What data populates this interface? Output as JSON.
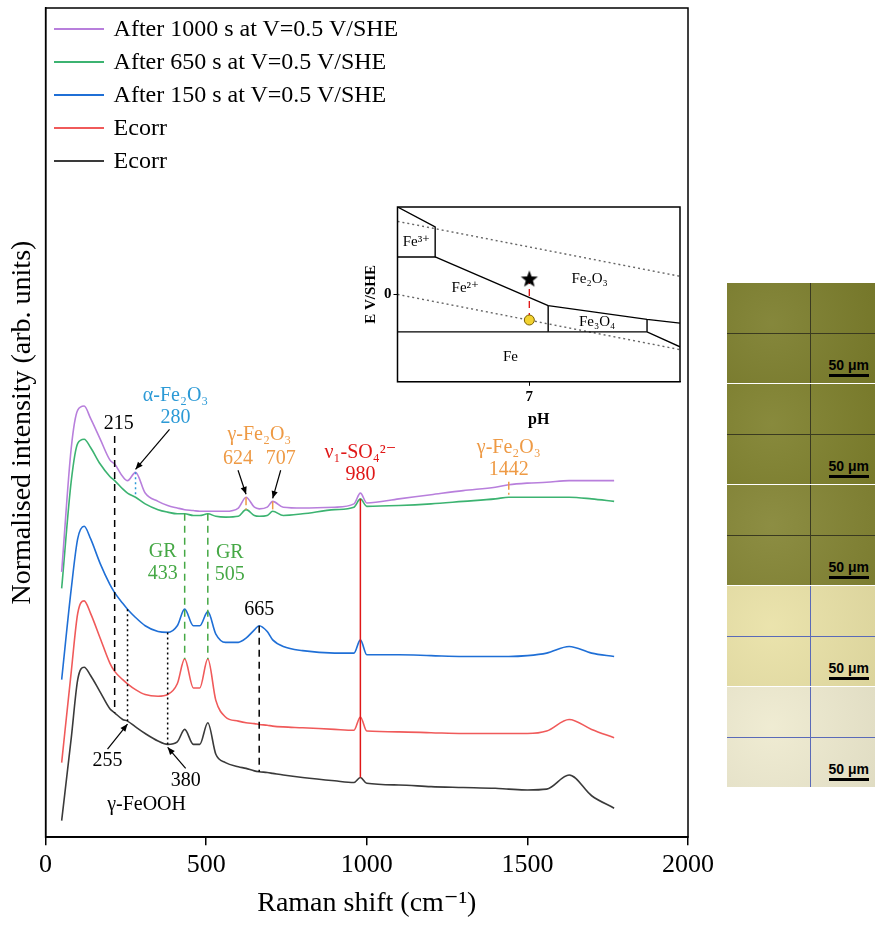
{
  "chart_data": [
    {
      "type": "line",
      "xlabel": "Raman shift (cm⁻¹)",
      "ylabel": "Normalised intensity (arb. units)",
      "xlim": [
        0,
        2000
      ],
      "xticks": [
        0,
        500,
        1000,
        1500,
        2000
      ],
      "ylim": [
        0,
        10
      ],
      "tick_labels": "x",
      "grid": false,
      "legend": "upper left",
      "x": [
        50,
        80,
        100,
        120,
        140,
        170,
        200,
        215,
        240,
        255,
        280,
        310,
        350,
        380,
        410,
        433,
        460,
        480,
        505,
        530,
        560,
        600,
        624,
        650,
        665,
        690,
        707,
        740,
        800,
        900,
        960,
        980,
        1000,
        1100,
        1200,
        1300,
        1400,
        1442,
        1500,
        1560,
        1630,
        1700,
        1770
      ],
      "series": [
        {
          "name": "After 1000 s at V=0.5 V/SHE",
          "color": "#b87fdc",
          "values": [
            3.2,
            4.7,
            5.15,
            5.2,
            5.05,
            4.8,
            4.55,
            4.5,
            4.35,
            4.3,
            4.4,
            4.15,
            4.05,
            4.0,
            3.97,
            3.95,
            3.94,
            3.93,
            3.93,
            3.93,
            3.93,
            3.97,
            4.1,
            3.98,
            3.96,
            3.98,
            4.05,
            3.98,
            3.97,
            3.98,
            4.02,
            4.15,
            4.03,
            4.08,
            4.13,
            4.18,
            4.22,
            4.25,
            4.27,
            4.28,
            4.3,
            4.3,
            4.3
          ]
        },
        {
          "name": "After 650 s at V=0.5 V/SHE",
          "color": "#3cb371",
          "values": [
            3.0,
            4.3,
            4.75,
            4.8,
            4.7,
            4.5,
            4.35,
            4.3,
            4.2,
            4.15,
            4.1,
            4.02,
            3.95,
            3.92,
            3.9,
            3.9,
            3.88,
            3.88,
            3.9,
            3.87,
            3.86,
            3.87,
            3.95,
            3.88,
            3.87,
            3.88,
            3.93,
            3.88,
            3.9,
            3.95,
            3.98,
            4.08,
            3.99,
            4.0,
            4.02,
            4.05,
            4.08,
            4.1,
            4.1,
            4.1,
            4.1,
            4.08,
            4.05
          ]
        },
        {
          "name": "After 150 s at V=0.5 V/SHE",
          "color": "#1f6fd6",
          "values": [
            1.9,
            3.0,
            3.6,
            3.75,
            3.6,
            3.3,
            3.05,
            2.95,
            2.82,
            2.75,
            2.65,
            2.55,
            2.48,
            2.47,
            2.55,
            2.75,
            2.55,
            2.55,
            2.72,
            2.45,
            2.35,
            2.35,
            2.4,
            2.5,
            2.55,
            2.48,
            2.38,
            2.3,
            2.25,
            2.22,
            2.22,
            2.38,
            2.2,
            2.2,
            2.19,
            2.18,
            2.18,
            2.18,
            2.19,
            2.22,
            2.3,
            2.22,
            2.18
          ]
        },
        {
          "name": "Ecorr",
          "color": "#f05a5a",
          "values": [
            0.9,
            2.0,
            2.7,
            2.85,
            2.7,
            2.4,
            2.1,
            2.0,
            1.9,
            1.85,
            1.78,
            1.72,
            1.7,
            1.72,
            1.85,
            2.15,
            1.8,
            1.8,
            2.15,
            1.65,
            1.45,
            1.4,
            1.38,
            1.37,
            1.36,
            1.35,
            1.34,
            1.33,
            1.32,
            1.3,
            1.29,
            1.45,
            1.28,
            1.27,
            1.26,
            1.25,
            1.25,
            1.25,
            1.25,
            1.28,
            1.42,
            1.3,
            1.2
          ]
        },
        {
          "name": "Ecorr",
          "color": "#3a3a3a",
          "values": [
            0.2,
            1.2,
            1.9,
            2.05,
            1.95,
            1.75,
            1.55,
            1.5,
            1.42,
            1.4,
            1.33,
            1.25,
            1.16,
            1.12,
            1.15,
            1.3,
            1.12,
            1.12,
            1.38,
            1.0,
            0.9,
            0.85,
            0.83,
            0.8,
            0.79,
            0.78,
            0.77,
            0.75,
            0.72,
            0.68,
            0.66,
            0.72,
            0.65,
            0.63,
            0.61,
            0.6,
            0.59,
            0.58,
            0.57,
            0.58,
            0.75,
            0.5,
            0.35
          ]
        }
      ],
      "annotations": [
        {
          "x": [
            215
          ],
          "color": "#000000",
          "line_style": "dashed"
        },
        {
          "name": "α-Fe₂O₃",
          "x": [
            280
          ],
          "color": "#2c9ad6",
          "line_style": "dotted"
        },
        {
          "name": "GR",
          "x": [
            433
          ],
          "color": "#45a845",
          "line_style": "dashed"
        },
        {
          "name": "GR",
          "x": [
            505
          ],
          "color": "#45a845",
          "line_style": "dashed"
        },
        {
          "name": "γ-Fe₂O₃",
          "x": [
            624,
            707
          ],
          "color": "#ee9a45",
          "line_style": "dashdot"
        },
        {
          "name": "ν₁-SO₄²⁻",
          "x": [
            980
          ],
          "color": "#e01818",
          "line_style": "solid"
        },
        {
          "name": "γ-Fe₂O₃",
          "x": [
            1442
          ],
          "color": "#ee9a45",
          "line_style": "dashdot"
        },
        {
          "x": [
            665
          ],
          "color": "#000000",
          "line_style": "dashed"
        },
        {
          "name": "γ-FeOOH",
          "x": [
            255,
            380
          ],
          "color": "#000000",
          "line_style": "dotted"
        }
      ]
    },
    {
      "type": "line",
      "xlabel": "pH",
      "ylabel": "E V/SHE",
      "xlim": [
        0,
        15
      ],
      "xticks": [
        7
      ],
      "ylim": [
        -1.4,
        1.4
      ],
      "yticks": [
        0
      ],
      "grid": false,
      "region_labels": [
        "Fe³⁺",
        "Fe²⁺",
        "Fe₂O₃",
        "Fe₃O₄",
        "Fe"
      ],
      "series": [
        {
          "color": "#000000",
          "line_style": "solid",
          "x": [
            0,
            2,
            2,
            0
          ],
          "values": [
            1.4,
            1.08,
            0.6,
            0.6
          ]
        },
        {
          "color": "#000000",
          "line_style": "solid",
          "x": [
            2,
            8
          ],
          "values": [
            0.6,
            -0.18
          ]
        },
        {
          "color": "#000000",
          "line_style": "solid",
          "x": [
            8,
            13.25,
            15
          ],
          "values": [
            -0.18,
            -0.4,
            -0.46
          ]
        },
        {
          "color": "#000000",
          "line_style": "solid",
          "x": [
            0,
            8,
            13.25,
            15
          ],
          "values": [
            -0.6,
            -0.6,
            -0.6,
            -0.84
          ]
        },
        {
          "color": "#000000",
          "line_style": "solid",
          "x": [
            8,
            8
          ],
          "values": [
            -0.18,
            -0.6
          ]
        },
        {
          "color": "#000000",
          "line_style": "solid",
          "x": [
            13.25,
            13.25
          ],
          "values": [
            -0.4,
            -0.6
          ]
        },
        {
          "color": "#666666",
          "line_style": "dotted",
          "x": [
            0,
            15
          ],
          "values": [
            1.17,
            0.29
          ]
        },
        {
          "color": "#666666",
          "line_style": "dotted",
          "x": [
            0,
            15
          ],
          "values": [
            0,
            -0.885
          ]
        },
        {
          "color": "#e01818",
          "line_style": "dashed",
          "x": [
            7,
            7
          ],
          "values": [
            -0.41,
            0.24
          ]
        }
      ],
      "points": [
        {
          "x": 7,
          "y": 0.24,
          "marker": "star",
          "color": "#000000"
        },
        {
          "x": 7,
          "y": -0.41,
          "marker": "circle",
          "color": "#f2d230"
        }
      ]
    }
  ],
  "micrographs": {
    "scale_bar": "50 μm",
    "colors": [
      "#7b7d2b",
      "#7e802c",
      "#838433",
      "#e9e1a6",
      "#eeeacf"
    ]
  }
}
